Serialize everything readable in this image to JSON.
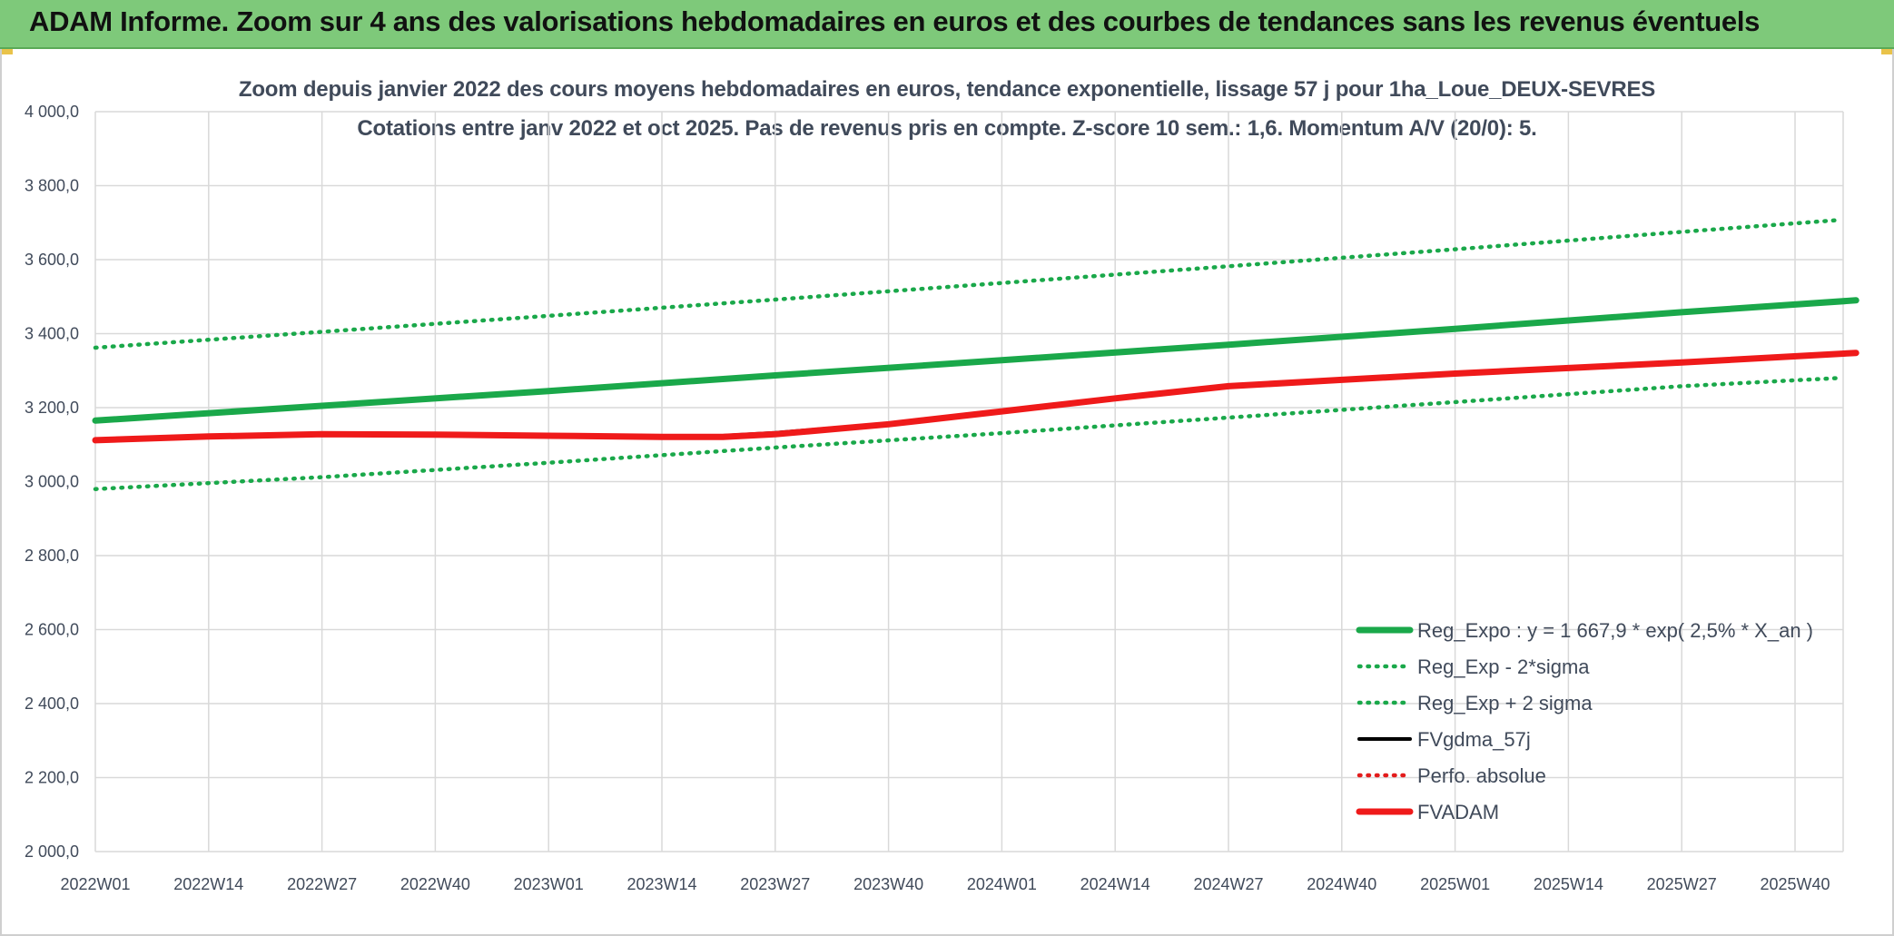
{
  "header": {
    "title": "ADAM Informe. Zoom sur 4 ans des valorisations hebdomadaires en euros et des courbes de tendances sans les revenus éventuels"
  },
  "chart_data": {
    "type": "line",
    "title": "Zoom depuis janvier 2022 des cours moyens hebdomadaires en euros, tendance exponentielle, lissage 57 j pour 1ha_Loue_DEUX-SEVRES",
    "subtitle": "Cotations entre janv 2022 et oct 2025. Pas de revenus pris en compte. Z-score 10 sem.: 1,6. Momentum A/V (20/0): 5.",
    "xlabel": "",
    "ylabel": "",
    "ylim": [
      2000,
      4000
    ],
    "yticks": [
      "2 000,0",
      "2 200,0",
      "2 400,0",
      "2 600,0",
      "2 800,0",
      "3 000,0",
      "3 200,0",
      "3 400,0",
      "3 600,0",
      "3 800,0",
      "4 000,0"
    ],
    "yticks_values": [
      2000,
      2200,
      2400,
      2600,
      2800,
      3000,
      3200,
      3400,
      3600,
      3800,
      4000
    ],
    "xlim": [
      0,
      202
    ],
    "x_ticks": [
      "2022W01",
      "2022W14",
      "2022W27",
      "2022W40",
      "2023W01",
      "2023W14",
      "2023W27",
      "2023W40",
      "2024W01",
      "2024W14",
      "2024W27",
      "2024W40",
      "2025W01",
      "2025W14",
      "2025W27",
      "2025W40"
    ],
    "x_ticks_index": [
      0,
      13,
      26,
      39,
      52,
      65,
      78,
      91,
      104,
      117,
      130,
      143,
      156,
      169,
      182,
      195
    ],
    "grid": true,
    "legend_position": "bottom-right",
    "series": [
      {
        "name": "Reg_Expo : y = 1 667,9 * exp( 2,5% *  X_an )",
        "style": "solid-thick",
        "color": "#1aa84a",
        "x": [
          0,
          26,
          52,
          78,
          104,
          130,
          156,
          182,
          202
        ],
        "y": [
          3165,
          3205,
          3245,
          3287,
          3328,
          3370,
          3413,
          3458,
          3490
        ]
      },
      {
        "name": "Reg_Exp - 2*sigma",
        "style": "dotted",
        "color": "#1aa84a",
        "x": [
          0,
          26,
          52,
          78,
          104,
          130,
          156,
          182,
          200
        ],
        "y": [
          2980,
          3012,
          3051,
          3092,
          3131,
          3173,
          3215,
          3258,
          3280
        ]
      },
      {
        "name": "Reg_Exp + 2 sigma",
        "style": "dotted",
        "color": "#1aa84a",
        "x": [
          0,
          26,
          52,
          78,
          104,
          130,
          156,
          182,
          200
        ],
        "y": [
          3362,
          3405,
          3448,
          3492,
          3537,
          3582,
          3628,
          3675,
          3707
        ]
      },
      {
        "name": "FVgdma_57j",
        "style": "solid",
        "color": "#000000",
        "x": [
          0,
          13,
          26,
          39,
          52,
          65,
          72,
          78,
          91,
          104,
          117,
          130,
          143,
          156,
          169,
          182,
          202
        ],
        "y": [
          3112,
          3122,
          3128,
          3127,
          3124,
          3122,
          3124,
          3132,
          3157,
          3190,
          3225,
          3258,
          3275,
          3292,
          3307,
          3322,
          3348
        ]
      },
      {
        "name": "Perfo. absolue",
        "style": "dotted",
        "color": "#e31c1c",
        "x": [],
        "y": []
      },
      {
        "name": "FVADAM",
        "style": "solid-thick",
        "color": "#ef1a1a",
        "x": [
          0,
          13,
          26,
          39,
          52,
          65,
          72,
          78,
          91,
          104,
          117,
          130,
          143,
          156,
          169,
          182,
          202
        ],
        "y": [
          3112,
          3122,
          3128,
          3127,
          3124,
          3121,
          3121,
          3128,
          3155,
          3190,
          3225,
          3258,
          3275,
          3292,
          3307,
          3322,
          3348
        ]
      }
    ]
  }
}
